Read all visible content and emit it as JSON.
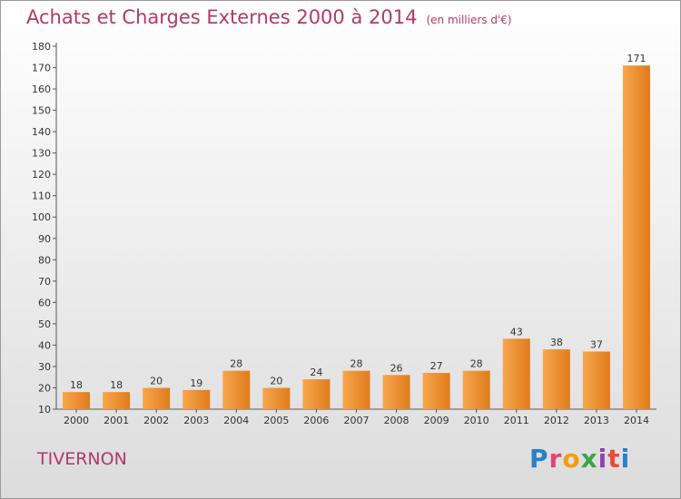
{
  "header": {
    "title": "Achats et Charges Externes 2000 à 2014",
    "unit": "(en milliers d'€)"
  },
  "footer": {
    "city": "TIVERNON",
    "logo": "Proxiti",
    "logo_colors": [
      "#2a7fc9",
      "#e0457b",
      "#f39c12",
      "#3aa545",
      "#8e44ad",
      "#e74c3c",
      "#2a7fc9"
    ]
  },
  "colors": {
    "bar_light": "#f7a64c",
    "bar_dark": "#e07b1c",
    "title": "#b0396a"
  },
  "chart_data": {
    "type": "bar",
    "title": "Achats et Charges Externes 2000 à 2014",
    "categories": [
      "2000",
      "2001",
      "2002",
      "2003",
      "2004",
      "2005",
      "2006",
      "2007",
      "2008",
      "2009",
      "2010",
      "2011",
      "2012",
      "2013",
      "2014"
    ],
    "values": [
      18,
      18,
      20,
      19,
      28,
      20,
      24,
      28,
      26,
      27,
      28,
      43,
      38,
      37,
      171
    ],
    "ylim": [
      10,
      180
    ],
    "yticks": [
      10,
      20,
      30,
      40,
      50,
      60,
      70,
      80,
      90,
      100,
      110,
      120,
      130,
      140,
      150,
      160,
      170,
      180
    ],
    "grid": false,
    "data_labels": true
  }
}
